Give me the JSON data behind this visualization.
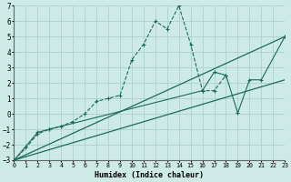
{
  "xlabel": "Humidex (Indice chaleur)",
  "bg_color": "#ceeae6",
  "grid_color": "#b0d4d0",
  "line_color": "#1a6b5a",
  "xlim": [
    0,
    23
  ],
  "ylim": [
    -3,
    7
  ],
  "xticks": [
    0,
    1,
    2,
    3,
    4,
    5,
    6,
    7,
    8,
    9,
    10,
    11,
    12,
    13,
    14,
    15,
    16,
    17,
    18,
    19,
    20,
    21,
    22,
    23
  ],
  "yticks": [
    -3,
    -2,
    -1,
    0,
    1,
    2,
    3,
    4,
    5,
    6,
    7
  ],
  "zigzag_x": [
    0,
    1,
    2,
    3,
    4,
    5,
    6,
    7,
    8,
    9,
    10,
    11,
    12,
    13,
    14,
    15,
    16,
    17,
    18
  ],
  "zigzag_y": [
    -3,
    -2.2,
    -1.3,
    -1.0,
    -0.8,
    -0.5,
    0.0,
    0.8,
    1.0,
    1.2,
    3.5,
    4.5,
    6.0,
    5.5,
    7.0,
    4.5,
    1.5,
    1.5,
    2.5
  ],
  "poly_x": [
    0,
    2,
    3,
    16,
    17,
    18,
    19,
    20,
    21,
    23
  ],
  "poly_y": [
    -3,
    -1.2,
    -1.0,
    1.5,
    2.7,
    2.5,
    0.05,
    2.2,
    2.2,
    5.0
  ],
  "line1_x": [
    0,
    23
  ],
  "line1_y": [
    -3,
    5.0
  ],
  "line2_x": [
    0,
    23
  ],
  "line2_y": [
    -3,
    2.2
  ]
}
